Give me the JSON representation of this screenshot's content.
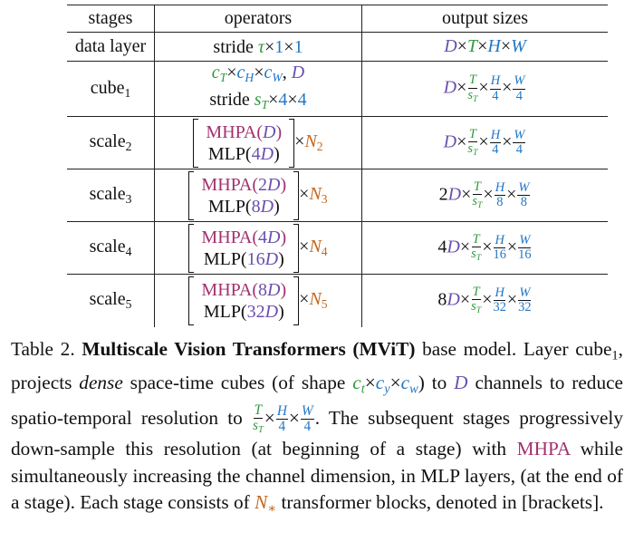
{
  "colors": {
    "p": "#6b4fb0",
    "g": "#2f9a3c",
    "b": "#2277c4",
    "m": "#a2326e",
    "o": "#c4661d"
  },
  "table": {
    "header": [
      "stages",
      "operators",
      "output sizes"
    ],
    "rows": [
      {
        "stage": [
          {
            "t": "data layer"
          }
        ],
        "ops": {
          "lines": [
            [
              {
                "t": "stride "
              },
              {
                "t": "τ",
                "c": "g",
                "i": true
              },
              {
                "t": "×"
              },
              {
                "t": "1",
                "c": "b"
              },
              {
                "t": "×"
              },
              {
                "t": "1",
                "c": "b"
              }
            ]
          ]
        },
        "out": [
          {
            "t": "D",
            "c": "p",
            "i": true
          },
          {
            "t": "×"
          },
          {
            "t": "T",
            "c": "g",
            "i": true
          },
          {
            "t": "×"
          },
          {
            "t": "H",
            "c": "b",
            "i": true
          },
          {
            "t": "×"
          },
          {
            "t": "W",
            "c": "b",
            "i": true
          }
        ]
      },
      {
        "stage": [
          {
            "t": "cube"
          },
          {
            "t": "1",
            "s": true
          }
        ],
        "ops": {
          "lines": [
            [
              {
                "t": "c",
                "c": "g",
                "i": true
              },
              {
                "t": "T",
                "c": "g",
                "i": true,
                "s": true
              },
              {
                "t": "×"
              },
              {
                "t": "c",
                "c": "b",
                "i": true
              },
              {
                "t": "H",
                "c": "b",
                "i": true,
                "s": true
              },
              {
                "t": "×"
              },
              {
                "t": "c",
                "c": "b",
                "i": true
              },
              {
                "t": "W",
                "c": "b",
                "i": true,
                "s": true
              },
              {
                "t": ", "
              },
              {
                "t": "D",
                "c": "p",
                "i": true
              }
            ],
            [
              {
                "t": "stride "
              },
              {
                "t": "s",
                "c": "g",
                "i": true
              },
              {
                "t": "T",
                "c": "g",
                "i": true,
                "s": true
              },
              {
                "t": "×"
              },
              {
                "t": "4",
                "c": "b"
              },
              {
                "t": "×"
              },
              {
                "t": "4",
                "c": "b"
              }
            ]
          ]
        },
        "out": [
          {
            "t": "D",
            "c": "p",
            "i": true
          },
          {
            "t": "×"
          },
          {
            "f": [
              [
                {
                  "t": "T",
                  "c": "g",
                  "i": true
                }
              ],
              [
                {
                  "t": "s",
                  "c": "g",
                  "i": true
                },
                {
                  "t": "T",
                  "c": "g",
                  "i": true,
                  "s": true
                }
              ]
            ]
          },
          {
            "t": "×"
          },
          {
            "f": [
              [
                {
                  "t": "H",
                  "c": "b",
                  "i": true
                }
              ],
              [
                {
                  "t": "4",
                  "c": "b"
                }
              ]
            ]
          },
          {
            "t": "×"
          },
          {
            "f": [
              [
                {
                  "t": "W",
                  "c": "b",
                  "i": true
                }
              ],
              [
                {
                  "t": "4",
                  "c": "b"
                }
              ]
            ]
          }
        ]
      },
      {
        "stage": [
          {
            "t": "scale"
          },
          {
            "t": "2",
            "s": true
          }
        ],
        "ops": {
          "bracket": true,
          "lines": [
            [
              {
                "t": "MHPA(",
                "c": "m"
              },
              {
                "t": "D",
                "c": "p",
                "i": true
              },
              {
                "t": ")",
                "c": "m"
              }
            ],
            [
              {
                "t": "MLP("
              },
              {
                "t": "4",
                "c": "p"
              },
              {
                "t": "D",
                "c": "p",
                "i": true
              },
              {
                "t": ")"
              }
            ]
          ],
          "after": [
            {
              "t": "×"
            },
            {
              "t": "N",
              "c": "o",
              "i": true
            },
            {
              "t": "2",
              "c": "o",
              "s": true
            }
          ]
        },
        "out": [
          {
            "t": "D",
            "c": "p",
            "i": true
          },
          {
            "t": "×"
          },
          {
            "f": [
              [
                {
                  "t": "T",
                  "c": "g",
                  "i": true
                }
              ],
              [
                {
                  "t": "s",
                  "c": "g",
                  "i": true
                },
                {
                  "t": "T",
                  "c": "g",
                  "i": true,
                  "s": true
                }
              ]
            ]
          },
          {
            "t": "×"
          },
          {
            "f": [
              [
                {
                  "t": "H",
                  "c": "b",
                  "i": true
                }
              ],
              [
                {
                  "t": "4",
                  "c": "b"
                }
              ]
            ]
          },
          {
            "t": "×"
          },
          {
            "f": [
              [
                {
                  "t": "W",
                  "c": "b",
                  "i": true
                }
              ],
              [
                {
                  "t": "4",
                  "c": "b"
                }
              ]
            ]
          }
        ]
      },
      {
        "stage": [
          {
            "t": "scale"
          },
          {
            "t": "3",
            "s": true
          }
        ],
        "ops": {
          "bracket": true,
          "lines": [
            [
              {
                "t": "MHPA(",
                "c": "m"
              },
              {
                "t": "2",
                "c": "p"
              },
              {
                "t": "D",
                "c": "p",
                "i": true
              },
              {
                "t": ")",
                "c": "m"
              }
            ],
            [
              {
                "t": "MLP("
              },
              {
                "t": "8",
                "c": "p"
              },
              {
                "t": "D",
                "c": "p",
                "i": true
              },
              {
                "t": ")"
              }
            ]
          ],
          "after": [
            {
              "t": "×"
            },
            {
              "t": "N",
              "c": "o",
              "i": true
            },
            {
              "t": "3",
              "c": "o",
              "s": true
            }
          ]
        },
        "out": [
          {
            "t": "2"
          },
          {
            "t": "D",
            "c": "p",
            "i": true
          },
          {
            "t": "×"
          },
          {
            "f": [
              [
                {
                  "t": "T",
                  "c": "g",
                  "i": true
                }
              ],
              [
                {
                  "t": "s",
                  "c": "g",
                  "i": true
                },
                {
                  "t": "T",
                  "c": "g",
                  "i": true,
                  "s": true
                }
              ]
            ]
          },
          {
            "t": "×"
          },
          {
            "f": [
              [
                {
                  "t": "H",
                  "c": "b",
                  "i": true
                }
              ],
              [
                {
                  "t": "8",
                  "c": "b"
                }
              ]
            ]
          },
          {
            "t": "×"
          },
          {
            "f": [
              [
                {
                  "t": "W",
                  "c": "b",
                  "i": true
                }
              ],
              [
                {
                  "t": "8",
                  "c": "b"
                }
              ]
            ]
          }
        ]
      },
      {
        "stage": [
          {
            "t": "scale"
          },
          {
            "t": "4",
            "s": true
          }
        ],
        "ops": {
          "bracket": true,
          "lines": [
            [
              {
                "t": "MHPA(",
                "c": "m"
              },
              {
                "t": "4",
                "c": "p"
              },
              {
                "t": "D",
                "c": "p",
                "i": true
              },
              {
                "t": ")",
                "c": "m"
              }
            ],
            [
              {
                "t": "MLP("
              },
              {
                "t": "16",
                "c": "p"
              },
              {
                "t": "D",
                "c": "p",
                "i": true
              },
              {
                "t": ")"
              }
            ]
          ],
          "after": [
            {
              "t": "×"
            },
            {
              "t": "N",
              "c": "o",
              "i": true
            },
            {
              "t": "4",
              "c": "o",
              "s": true
            }
          ]
        },
        "out": [
          {
            "t": "4"
          },
          {
            "t": "D",
            "c": "p",
            "i": true
          },
          {
            "t": "×"
          },
          {
            "f": [
              [
                {
                  "t": "T",
                  "c": "g",
                  "i": true
                }
              ],
              [
                {
                  "t": "s",
                  "c": "g",
                  "i": true
                },
                {
                  "t": "T",
                  "c": "g",
                  "i": true,
                  "s": true
                }
              ]
            ]
          },
          {
            "t": "×"
          },
          {
            "f": [
              [
                {
                  "t": "H",
                  "c": "b",
                  "i": true
                }
              ],
              [
                {
                  "t": "16",
                  "c": "b"
                }
              ]
            ]
          },
          {
            "t": "×"
          },
          {
            "f": [
              [
                {
                  "t": "W",
                  "c": "b",
                  "i": true
                }
              ],
              [
                {
                  "t": "16",
                  "c": "b"
                }
              ]
            ]
          }
        ]
      },
      {
        "stage": [
          {
            "t": "scale"
          },
          {
            "t": "5",
            "s": true
          }
        ],
        "ops": {
          "bracket": true,
          "lines": [
            [
              {
                "t": "MHPA(",
                "c": "m"
              },
              {
                "t": "8",
                "c": "p"
              },
              {
                "t": "D",
                "c": "p",
                "i": true
              },
              {
                "t": ")",
                "c": "m"
              }
            ],
            [
              {
                "t": "MLP("
              },
              {
                "t": "32",
                "c": "p"
              },
              {
                "t": "D",
                "c": "p",
                "i": true
              },
              {
                "t": ")"
              }
            ]
          ],
          "after": [
            {
              "t": "×"
            },
            {
              "t": "N",
              "c": "o",
              "i": true
            },
            {
              "t": "5",
              "c": "o",
              "s": true
            }
          ]
        },
        "out": [
          {
            "t": "8"
          },
          {
            "t": "D",
            "c": "p",
            "i": true
          },
          {
            "t": "×"
          },
          {
            "f": [
              [
                {
                  "t": "T",
                  "c": "g",
                  "i": true
                }
              ],
              [
                {
                  "t": "s",
                  "c": "g",
                  "i": true
                },
                {
                  "t": "T",
                  "c": "g",
                  "i": true,
                  "s": true
                }
              ]
            ]
          },
          {
            "t": "×"
          },
          {
            "f": [
              [
                {
                  "t": "H",
                  "c": "b",
                  "i": true
                }
              ],
              [
                {
                  "t": "32",
                  "c": "b"
                }
              ]
            ]
          },
          {
            "t": "×"
          },
          {
            "f": [
              [
                {
                  "t": "W",
                  "c": "b",
                  "i": true
                }
              ],
              [
                {
                  "t": "32",
                  "c": "b"
                }
              ]
            ]
          }
        ]
      }
    ]
  },
  "caption": [
    {
      "t": "Table 2. "
    },
    {
      "t": "Multiscale Vision Transformers (MViT)",
      "bold": true
    },
    {
      "t": " base model. Layer cube"
    },
    {
      "t": "1",
      "s": true
    },
    {
      "t": ", projects "
    },
    {
      "t": "dense",
      "i": true
    },
    {
      "t": " space-time cubes (of shape "
    },
    {
      "t": "c",
      "c": "g",
      "i": true
    },
    {
      "t": "t",
      "c": "g",
      "i": true,
      "s": true
    },
    {
      "t": "×"
    },
    {
      "t": "c",
      "c": "b",
      "i": true
    },
    {
      "t": "y",
      "c": "b",
      "i": true,
      "s": true
    },
    {
      "t": "×"
    },
    {
      "t": "c",
      "c": "b",
      "i": true
    },
    {
      "t": "w",
      "c": "b",
      "i": true,
      "s": true
    },
    {
      "t": ") to "
    },
    {
      "t": "D",
      "c": "p",
      "i": true
    },
    {
      "t": " channels to reduce spatio-temporal resolution to "
    },
    {
      "f": [
        [
          {
            "t": "T",
            "c": "g",
            "i": true
          }
        ],
        [
          {
            "t": "s",
            "c": "g",
            "i": true
          },
          {
            "t": "T",
            "c": "g",
            "i": true,
            "s": true
          }
        ]
      ]
    },
    {
      "t": "×"
    },
    {
      "f": [
        [
          {
            "t": "H",
            "c": "b",
            "i": true
          }
        ],
        [
          {
            "t": "4",
            "c": "b"
          }
        ]
      ]
    },
    {
      "t": "×"
    },
    {
      "f": [
        [
          {
            "t": "W",
            "c": "b",
            "i": true
          }
        ],
        [
          {
            "t": "4",
            "c": "b"
          }
        ]
      ]
    },
    {
      "t": ". The subsequent stages progressively down-sample this resolution (at beginning of a stage) with "
    },
    {
      "t": "MHPA",
      "c": "m"
    },
    {
      "t": " while simultaneously increasing the channel dimension, in MLP layers, (at the end of a stage). Each stage consists of "
    },
    {
      "t": "N",
      "c": "o",
      "i": true
    },
    {
      "t": "∗",
      "c": "o",
      "s": true
    },
    {
      "t": " transformer blocks, denoted in [brackets]."
    }
  ]
}
